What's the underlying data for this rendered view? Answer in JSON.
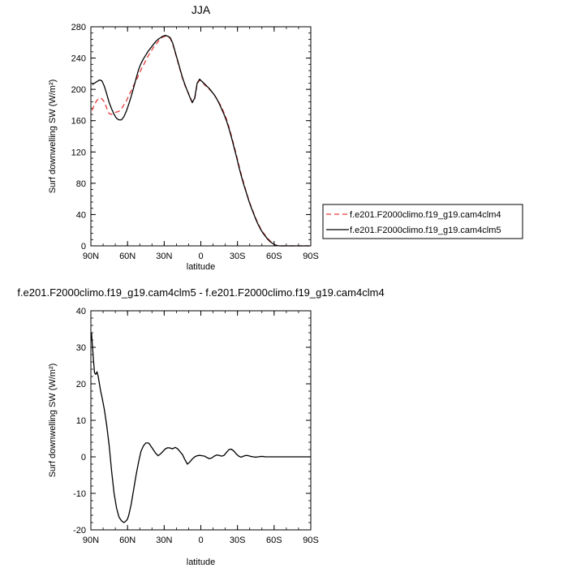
{
  "chart_data": [
    {
      "type": "line",
      "title": "JJA",
      "xlabel": "latitude",
      "ylabel": "Surf downwelling SW (W/m²)",
      "xlim": [
        90,
        -90
      ],
      "ylim": [
        0,
        280
      ],
      "x_tick_values": [
        90,
        60,
        30,
        0,
        -30,
        -60,
        -90
      ],
      "x_tick_labels": [
        "90N",
        "60N",
        "30N",
        "0",
        "30S",
        "60S",
        "90S"
      ],
      "y_tick_values": [
        0,
        40,
        80,
        120,
        160,
        200,
        240,
        280
      ],
      "y_tick_labels": [
        "0",
        "40",
        "80",
        "120",
        "160",
        "200",
        "240",
        "280"
      ],
      "legend": "outside-right",
      "series": [
        {
          "name": "f.e201.F2000climo.f19_g19.cam4clm4",
          "color": "#e8393a",
          "dash": "dashed",
          "x": [
            89,
            87,
            85,
            83,
            81,
            79,
            77,
            75,
            73,
            71,
            69,
            67,
            65,
            63,
            61,
            59,
            57,
            55,
            53,
            51,
            49,
            47,
            45,
            43,
            41,
            39,
            37,
            35,
            33,
            31,
            29,
            27,
            25,
            23,
            21,
            19,
            17,
            15,
            13,
            11,
            9,
            7,
            5,
            3,
            1,
            -1,
            -3,
            -5,
            -7,
            -9,
            -11,
            -13,
            -15,
            -17,
            -19,
            -21,
            -23,
            -25,
            -27,
            -29,
            -31,
            -33,
            -35,
            -37,
            -39,
            -41,
            -43,
            -45,
            -47,
            -49,
            -51,
            -53,
            -55,
            -57,
            -59,
            -61,
            -63,
            -65,
            -67,
            -69,
            -71,
            -73,
            -75,
            -77,
            -79,
            -81,
            -83,
            -85,
            -87,
            -89
          ],
          "values": [
            173,
            181,
            186,
            189,
            188,
            184,
            176,
            169,
            168,
            170,
            171,
            172,
            175,
            180,
            185,
            192,
            198,
            205,
            211,
            218,
            225,
            231,
            237,
            243,
            248,
            253,
            257,
            261,
            265,
            267,
            268,
            267,
            265,
            258,
            247,
            236,
            225,
            214,
            205,
            198,
            191,
            184,
            188,
            207,
            212,
            210,
            206,
            203,
            200,
            197,
            193,
            188,
            183,
            177,
            170,
            162,
            152,
            141,
            129,
            117,
            104,
            92,
            81,
            70,
            60,
            51,
            43,
            35,
            28,
            22,
            17,
            13,
            9,
            6,
            3,
            1,
            0.3,
            0,
            0,
            0,
            0,
            0,
            0,
            0,
            0,
            0,
            0,
            0,
            0,
            0
          ]
        },
        {
          "name": "f.e201.F2000climo.f19_g19.cam4clm5",
          "color": "#000000",
          "dash": "solid",
          "x": [
            89,
            87,
            85,
            83,
            81,
            79,
            77,
            75,
            73,
            71,
            69,
            67,
            65,
            63,
            61,
            59,
            57,
            55,
            53,
            51,
            49,
            47,
            45,
            43,
            41,
            39,
            37,
            35,
            33,
            31,
            29,
            27,
            25,
            23,
            21,
            19,
            17,
            15,
            13,
            11,
            9,
            7,
            5,
            3,
            1,
            -1,
            -3,
            -5,
            -7,
            -9,
            -11,
            -13,
            -15,
            -17,
            -19,
            -21,
            -23,
            -25,
            -27,
            -29,
            -31,
            -33,
            -35,
            -37,
            -39,
            -41,
            -43,
            -45,
            -47,
            -49,
            -51,
            -53,
            -55,
            -57,
            -59,
            -61,
            -63,
            -65,
            -67,
            -69,
            -71,
            -73,
            -75,
            -77,
            -79,
            -81,
            -83,
            -85,
            -87,
            -89
          ],
          "values": [
            206,
            208,
            210,
            212,
            211,
            204,
            194,
            183,
            175,
            168,
            163,
            161,
            161,
            165,
            172,
            181,
            191,
            202,
            214,
            225,
            233,
            239,
            244,
            249,
            253,
            257,
            261,
            264,
            266,
            268,
            269,
            268,
            266,
            259,
            248,
            237,
            226,
            215,
            206,
            198,
            190,
            183,
            189,
            208,
            213,
            210,
            207,
            204,
            201,
            197,
            193,
            188,
            182,
            175,
            168,
            160,
            150,
            139,
            127,
            115,
            102,
            90,
            79,
            69,
            59,
            50,
            42,
            34,
            27,
            21,
            16,
            12,
            8,
            5,
            3,
            1,
            0.3,
            0,
            0,
            0,
            0,
            0,
            0,
            0,
            0,
            0,
            0,
            0,
            0,
            0
          ]
        }
      ]
    },
    {
      "type": "line",
      "title": "f.e201.F2000climo.f19_g19.cam4clm5 - f.e201.F2000climo.f19_g19.cam4clm4",
      "xlabel": "latitude",
      "ylabel": "Surf downwelling SW (W/m²)",
      "xlim": [
        90,
        -90
      ],
      "ylim": [
        -20,
        40
      ],
      "x_tick_values": [
        90,
        60,
        30,
        0,
        -30,
        -60,
        -90
      ],
      "x_tick_labels": [
        "90N",
        "60N",
        "30N",
        "0",
        "30S",
        "60S",
        "90S"
      ],
      "y_tick_values": [
        -20,
        -10,
        0,
        10,
        20,
        30,
        40
      ],
      "y_tick_labels": [
        "-20",
        "-10",
        "0",
        "10",
        "20",
        "30",
        "40"
      ],
      "series": [
        {
          "color": "#000000",
          "dash": "solid",
          "x": [
            89.5,
            88,
            87,
            86,
            85,
            84,
            83,
            82,
            81,
            79,
            77,
            75,
            73,
            71,
            69,
            67,
            65,
            63,
            61,
            60,
            59,
            57,
            55,
            53,
            51,
            49,
            47,
            45,
            43,
            42,
            41,
            39,
            37,
            35,
            33,
            31,
            29,
            27,
            25,
            23,
            21,
            19,
            17,
            15,
            13,
            11,
            9,
            7,
            5,
            3,
            1,
            -1,
            -3,
            -5,
            -7,
            -9,
            -11,
            -13,
            -15,
            -17,
            -19,
            -21,
            -23,
            -25,
            -27,
            -29,
            -31,
            -33,
            -35,
            -37,
            -39,
            -41,
            -43,
            -45,
            -47,
            -49,
            -51,
            -53,
            -55,
            -57,
            -59,
            -61,
            -65,
            -70,
            -75,
            -80,
            -85,
            -89.5
          ],
          "values": [
            34,
            27,
            23,
            22.6,
            23.3,
            22,
            20,
            18,
            16.5,
            13,
            8.5,
            3,
            -4,
            -10,
            -14,
            -16.5,
            -17.5,
            -18,
            -17.5,
            -17,
            -16,
            -13,
            -9,
            -5,
            -1.5,
            1.5,
            3,
            3.8,
            3.8,
            3.5,
            3,
            2,
            1,
            0.3,
            0.8,
            1.5,
            2.2,
            2.5,
            2.4,
            2.2,
            2.6,
            2.2,
            1.4,
            0.6,
            -0.8,
            -2,
            -1.4,
            -0.6,
            0,
            0.3,
            0.4,
            0.3,
            0.2,
            -0.2,
            -0.5,
            -0.3,
            0.2,
            0.5,
            0.4,
            0.2,
            0.4,
            1.2,
            2,
            2.1,
            1.6,
            0.8,
            0.2,
            -0.1,
            0.2,
            0.4,
            0.3,
            0.1,
            0,
            -0.1,
            0,
            0.1,
            0.1,
            0,
            0,
            0,
            0,
            0,
            0,
            0,
            0,
            0,
            0,
            0
          ]
        }
      ]
    }
  ]
}
